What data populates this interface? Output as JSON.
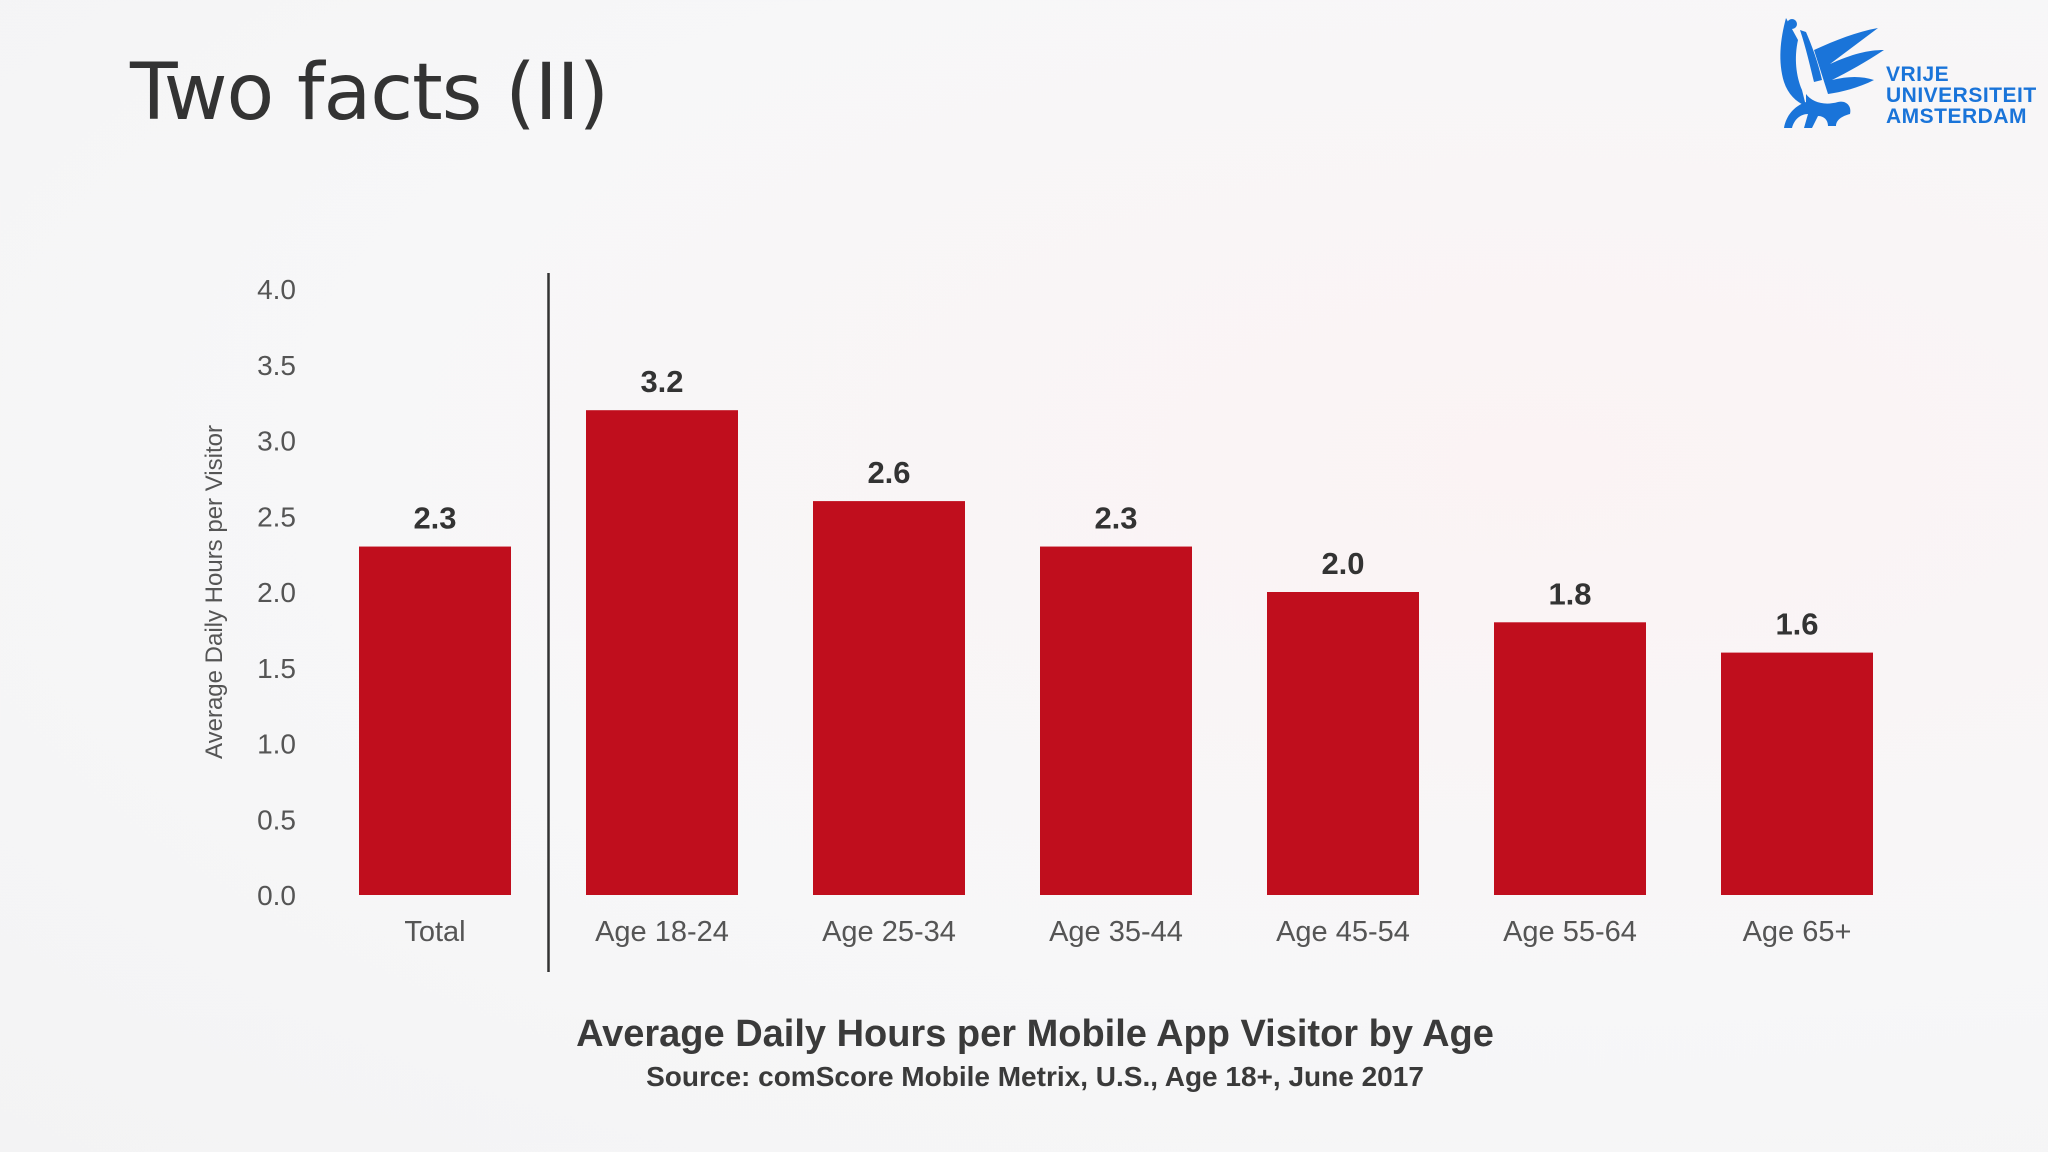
{
  "slide": {
    "title": "Two facts (II)"
  },
  "logo": {
    "lines": [
      "VRIJE",
      "UNIVERSITEIT",
      "AMSTERDAM"
    ],
    "color": "#1a74d9",
    "icon": "griffin-icon"
  },
  "chart_data": {
    "type": "bar",
    "title": "Average Daily Hours per Mobile App Visitor by Age",
    "subtitle": "Source: comScore Mobile Metrix, U.S., Age 18+, June 2017",
    "xlabel": "",
    "ylabel": "Average Daily Hours per Visitor",
    "ylim": [
      0,
      4.0
    ],
    "yticks": [
      "0.0",
      "0.5",
      "1.0",
      "1.5",
      "2.0",
      "2.5",
      "3.0",
      "3.5",
      "4.0"
    ],
    "categories": [
      "Total",
      "Age 18-24",
      "Age 25-34",
      "Age 35-44",
      "Age 45-54",
      "Age 55-64",
      "Age 65+"
    ],
    "values": [
      2.3,
      3.2,
      2.6,
      2.3,
      2.0,
      1.8,
      1.6
    ],
    "data_labels": [
      "2.3",
      "3.2",
      "2.6",
      "2.3",
      "2.0",
      "1.8",
      "1.6"
    ],
    "bar_color": "#c00e1d",
    "grid": false,
    "legend": "none",
    "separator_after": "Total"
  }
}
